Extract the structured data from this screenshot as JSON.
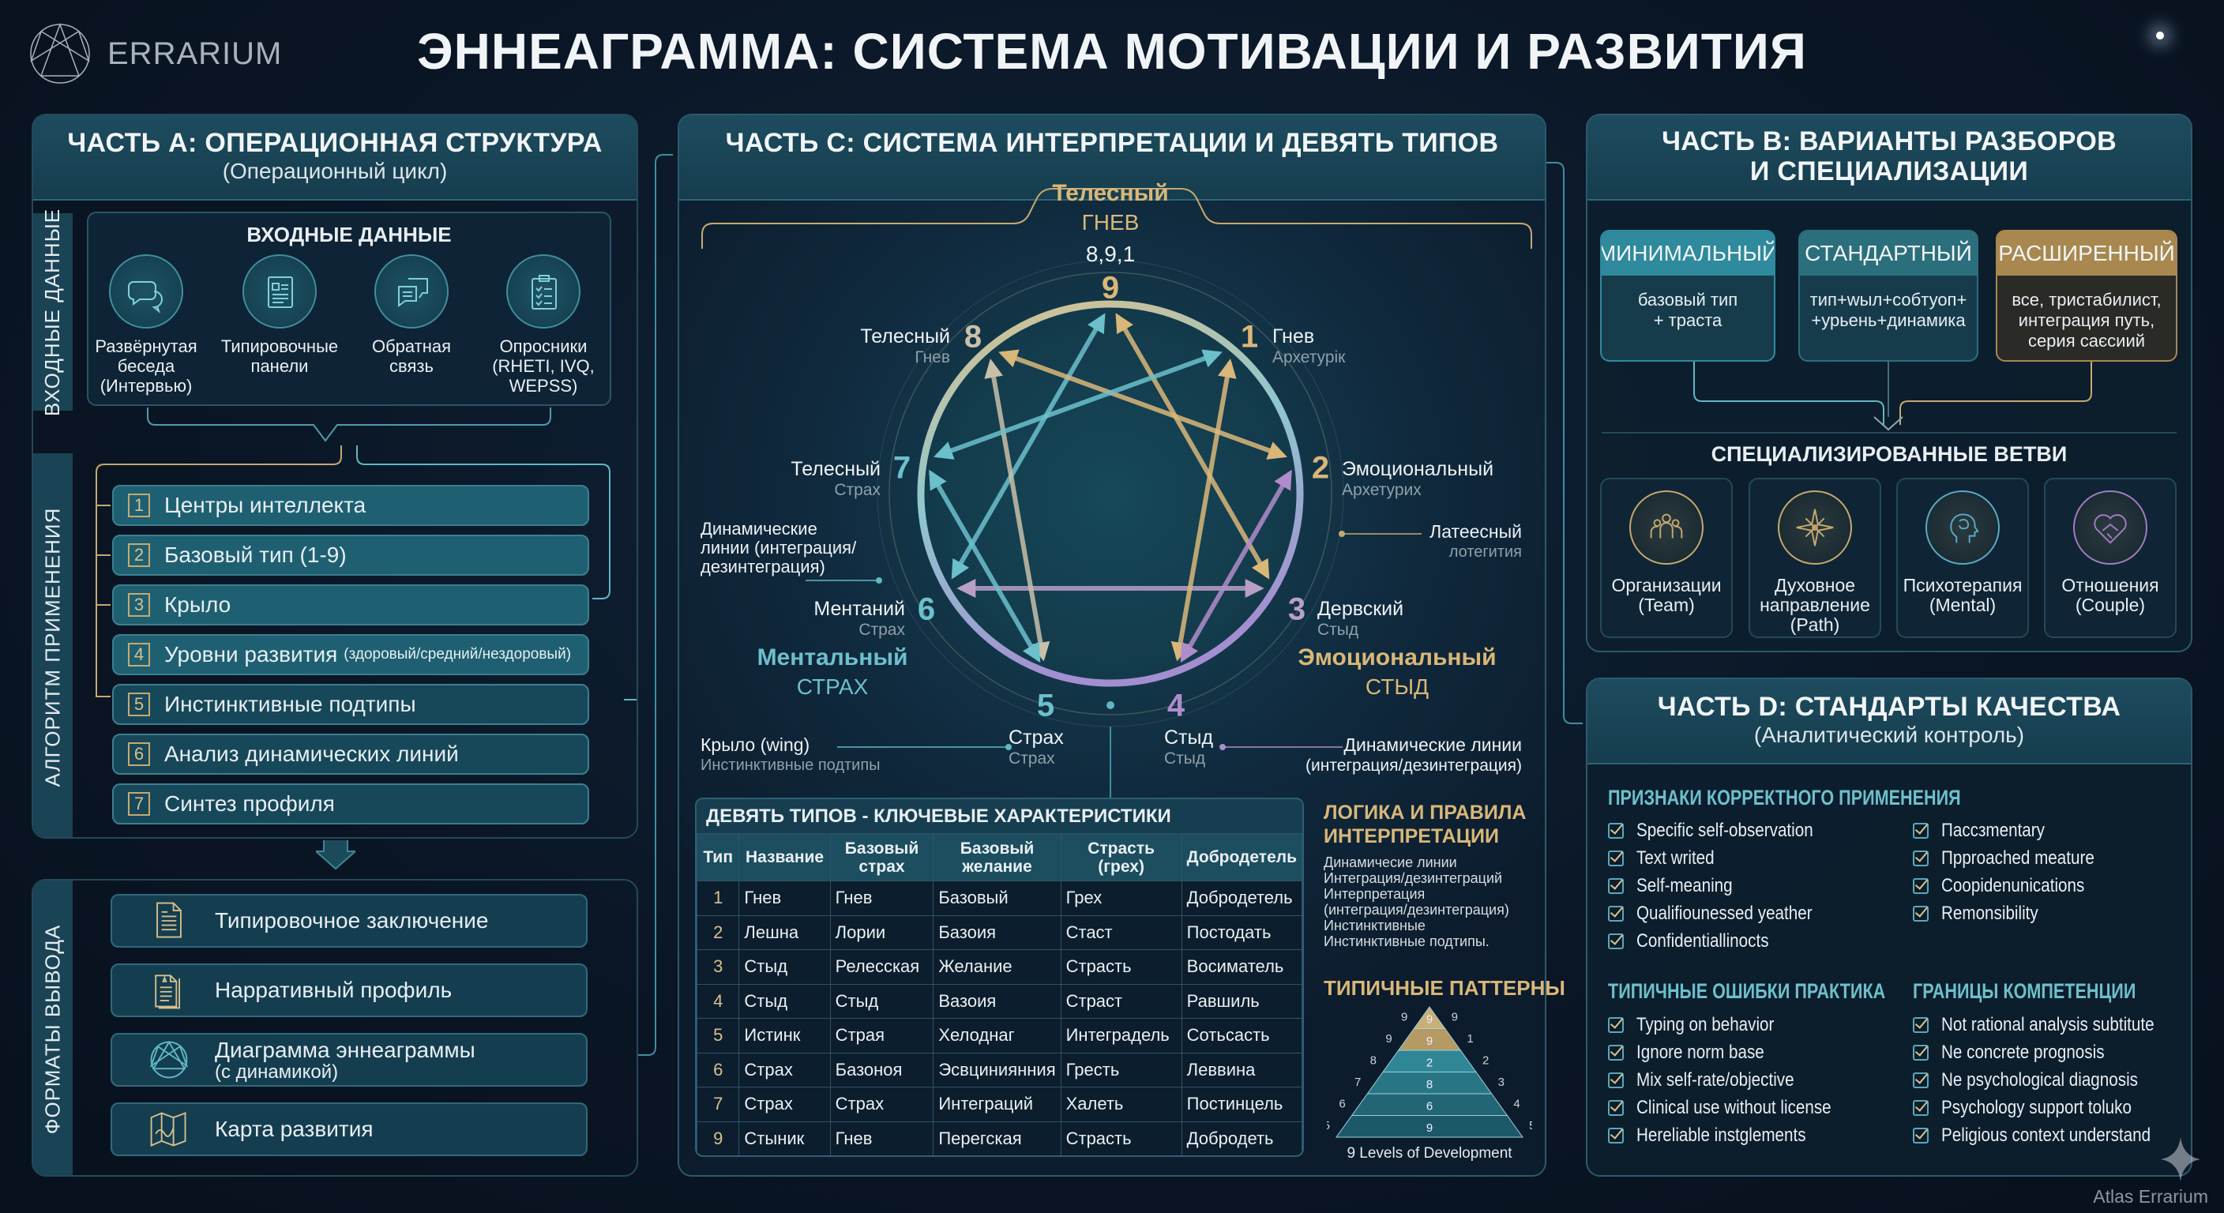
{
  "brand": {
    "name": "ERRARIUM",
    "logo_icon": "enneagram-logo-icon"
  },
  "title": "ЭННЕАГРАММА: СИСТЕМА МОТИВАЦИИ И РАЗВИТИЯ",
  "footer": "Atlas Errarium",
  "colors": {
    "gold": "#d9b779",
    "teal": "#5fb8c4",
    "purple": "#a98fc8",
    "panel": "#0e2335",
    "header": "#1d4c5e"
  },
  "part_a": {
    "title": "ЧАСТЬ А: ОПЕРАЦИОННАЯ СТРУКТУРА",
    "subtitle": "(Операционный цикл)",
    "input_side_label": "ВХОДНЫЕ ДАННЫЕ",
    "input_title": "ВХОДНЫЕ ДАННЫЕ",
    "inputs": [
      {
        "label": "Развёрнутая\nбеседа\n(Интервью)",
        "icon": "chat-bubbles-icon"
      },
      {
        "label": "Типировочные\nпанели",
        "icon": "panel-document-icon"
      },
      {
        "label": "Обратная\nсвязь",
        "icon": "feedback-icon"
      },
      {
        "label": "Опросники\n(RHETI, IVQ,\nWEPSS)",
        "icon": "clipboard-icon"
      }
    ],
    "algorithm_label": "АЛГОРИТМ ПРИМЕНЕНИЯ",
    "steps": [
      {
        "num": "1",
        "label": "Центры интеллекта"
      },
      {
        "num": "2",
        "label": "Базовый тип (1-9)"
      },
      {
        "num": "3",
        "label": "Крыло"
      },
      {
        "num": "4",
        "label": "Уровни развития",
        "note": "(здоровый/средний/нездоровый)"
      },
      {
        "num": "5",
        "label": "Инстинктивные подтипы"
      },
      {
        "num": "6",
        "label": "Анализ динамических линий"
      },
      {
        "num": "7",
        "label": "Синтез профиля"
      }
    ],
    "output_label": "ФОРМАТЫ ВЫВОДА",
    "outputs": [
      {
        "label": "Типировочное заключение",
        "icon": "document-icon"
      },
      {
        "label": "Нарративный профиль",
        "icon": "documents-icon"
      },
      {
        "label": "Диаграмма эннеаграммы",
        "sub": "(с динамикой)",
        "icon": "enneagram-icon"
      },
      {
        "label": "Карта развития",
        "icon": "map-icon"
      }
    ]
  },
  "part_c": {
    "title": "ЧАСТЬ C: СИСТЕМА ИНТЕРПРЕТАЦИИ И ДЕВЯТЬ ТИПОВ",
    "top_center": {
      "name": "Телесный",
      "emotion": "ГНЕВ",
      "types": "8,9,1"
    },
    "points": [
      {
        "n": "9",
        "color": "#d9b779"
      },
      {
        "n": "1",
        "name": "Гнев",
        "sub": "Архетурiк",
        "color": "#d9b779"
      },
      {
        "n": "2",
        "name": "Эмоциональный",
        "sub": "Архетурих",
        "color": "#d9b779"
      },
      {
        "n": "3",
        "name": "Дервский",
        "sub": "Стыд",
        "color": "#b89fc8"
      },
      {
        "n": "4",
        "name": "Стыд",
        "sub": "Стыд",
        "color": "#b08ccc"
      },
      {
        "n": "5",
        "name": "Страх",
        "sub": "Страх",
        "color": "#6cc0cc"
      },
      {
        "n": "6",
        "name": "Ментаний",
        "sub": "Страх",
        "color": "#6cc0cc"
      },
      {
        "n": "7",
        "name": "Телесный",
        "sub": "Страх",
        "color": "#6cc0cc"
      },
      {
        "n": "8",
        "name": "Телесный",
        "sub": "Гнев",
        "color": "#c8c0a8"
      }
    ],
    "lines": [
      [
        "9",
        "3"
      ],
      [
        "3",
        "6"
      ],
      [
        "6",
        "9"
      ],
      [
        "1",
        "4"
      ],
      [
        "4",
        "2"
      ],
      [
        "2",
        "8"
      ],
      [
        "8",
        "5"
      ],
      [
        "5",
        "7"
      ],
      [
        "7",
        "1"
      ]
    ],
    "mental": {
      "name": "Ментальный",
      "emotion": "СТРАХ"
    },
    "emotional": {
      "name": "Эмоциональный",
      "emotion": "СТЫД"
    },
    "annotations": {
      "dyn_left": "Динамические\nлинии (интеграция/\nдезинтеграция)",
      "right_name": "Латеесный",
      "right_sub": "лотегития",
      "wing": "Крыло (wing)",
      "wing_sub": "Инстинктивные подтипы",
      "dyn_right": "Динамические линии",
      "dyn_right_sub": "(интеграция/дезинтеграция)"
    },
    "table": {
      "title": "ДЕВЯТЬ ТИПОВ - КЛЮЧЕВЫЕ ХАРАКТЕРИСТИКИ",
      "columns": [
        "Тип",
        "Название",
        "Базовый страх",
        "Базовый желание",
        "Страсть (грех)",
        "Добродетель"
      ],
      "rows": [
        [
          "1",
          "Гнев",
          "Гнев",
          "Базовый",
          "Грех",
          "Добродетель"
        ],
        [
          "2",
          "Лешна",
          "Лории",
          "Базоия",
          "Стаст",
          "Постодать"
        ],
        [
          "3",
          "Стыд",
          "Релесская",
          "Желание",
          "Страсть",
          "Восиматель"
        ],
        [
          "4",
          "Стыд",
          "Стыд",
          "Вазоия",
          "Страст",
          "Равшиль"
        ],
        [
          "5",
          "Истинк",
          "Страя",
          "Хелоднаг",
          "Интеградель",
          "Сотьсасть"
        ],
        [
          "6",
          "Страх",
          "Базоноя",
          "Эсвциниянния",
          "Гресть",
          "Леввина"
        ],
        [
          "7",
          "Страх",
          "Страх",
          "Интеграций",
          "Халеть",
          "Постинцель"
        ],
        [
          "9",
          "Стыник",
          "Гнев",
          "Перегская",
          "Страсть",
          "Добродеть"
        ]
      ]
    },
    "logic": {
      "title": "ЛОГИКА И ПРАВИЛА\nИНТЕРПРЕТАЦИИ",
      "text": "Динамичесие линии\nИнтеграция/дезинтеграций\nИнтерпретация\n(интеграция/дезинтеграция)\nИнстинктивные\nИнстинктивные подтипы."
    },
    "patterns": {
      "title": "ТИПИЧНЫЕ ПАТТЕРНЫ",
      "levels_center": [
        "9",
        "9",
        "2",
        "8",
        "6",
        "9"
      ],
      "levels_left": [
        "9",
        "9",
        "8",
        "7",
        "6",
        "5"
      ],
      "levels_right": [
        "9",
        "1",
        "2",
        "3",
        "4",
        "5"
      ],
      "caption": "9 Levels of Development"
    }
  },
  "part_b": {
    "title": "ЧАСТЬ B: ВАРИАНТЫ РАЗБОРОВ\nИ СПЕЦИАЛИЗАЦИИ",
    "variants": [
      {
        "name": "МИНИМАЛЬНЫЙ",
        "desc": "базовый тип\n+ траста",
        "color": "#2e8a9c"
      },
      {
        "name": "СТАНДАРТНЫЙ",
        "desc": "тип+wыл+собтуоп+\n+урьень+динамика",
        "color": "#2b6f7c"
      },
      {
        "name": "РАСШИРЕННЫЙ",
        "desc": "все, тристабилист,\nинтеграция путь,\nсерия саєсиий",
        "color": "#a8884f"
      }
    ],
    "branches_title": "СПЕЦИАЛИЗИРОВАННЫЕ ВЕТВИ",
    "branches": [
      {
        "label": "Организации\n(Team)",
        "icon": "team-icon",
        "color": "#c6a96f"
      },
      {
        "label": "Духовное\nнаправление\n(Path)",
        "icon": "compass-star-icon",
        "color": "#c6a96f"
      },
      {
        "label": "Психотерапия\n(Mental)",
        "icon": "brain-head-icon",
        "color": "#5aa9c8"
      },
      {
        "label": "Отношения\n(Couple)",
        "icon": "heart-handshake-icon",
        "color": "#a07cc0"
      }
    ]
  },
  "part_d": {
    "title": "ЧАСТЬ D: СТАНДАРТЫ КАЧЕСТВА",
    "subtitle": "(Аналитический контроль)",
    "correct_title": "ПРИЗНАКИ КОРРЕКТНОГО ПРИМЕНЕНИЯ",
    "correct_col1": [
      "Specific self-observation",
      "Text writed",
      "Self-meaning",
      "Qualifiounessed yeather",
      "Confidentiallinocts"
    ],
    "correct_col2": [
      "Пассзmentary",
      "Пpproached meature",
      "Coopidenunications",
      "Remonsibility"
    ],
    "errors_title": "ТИПИЧНЫЕ ОШИБКИ ПРАКТИКА",
    "errors": [
      "Typing on behavior",
      "Ignore norm base",
      "Mix self-rate/objective",
      "Clinical use without license",
      "Hereliable instglements"
    ],
    "limits_title": "ГРАНИЦЫ КОМПЕТЕНЦИИ",
    "limits": [
      "Not rational analysis subtitute",
      "Ne concrete prognosis",
      "Ne psychological diagnosis",
      "Psychology support toluko",
      "Peligious context understand"
    ]
  }
}
